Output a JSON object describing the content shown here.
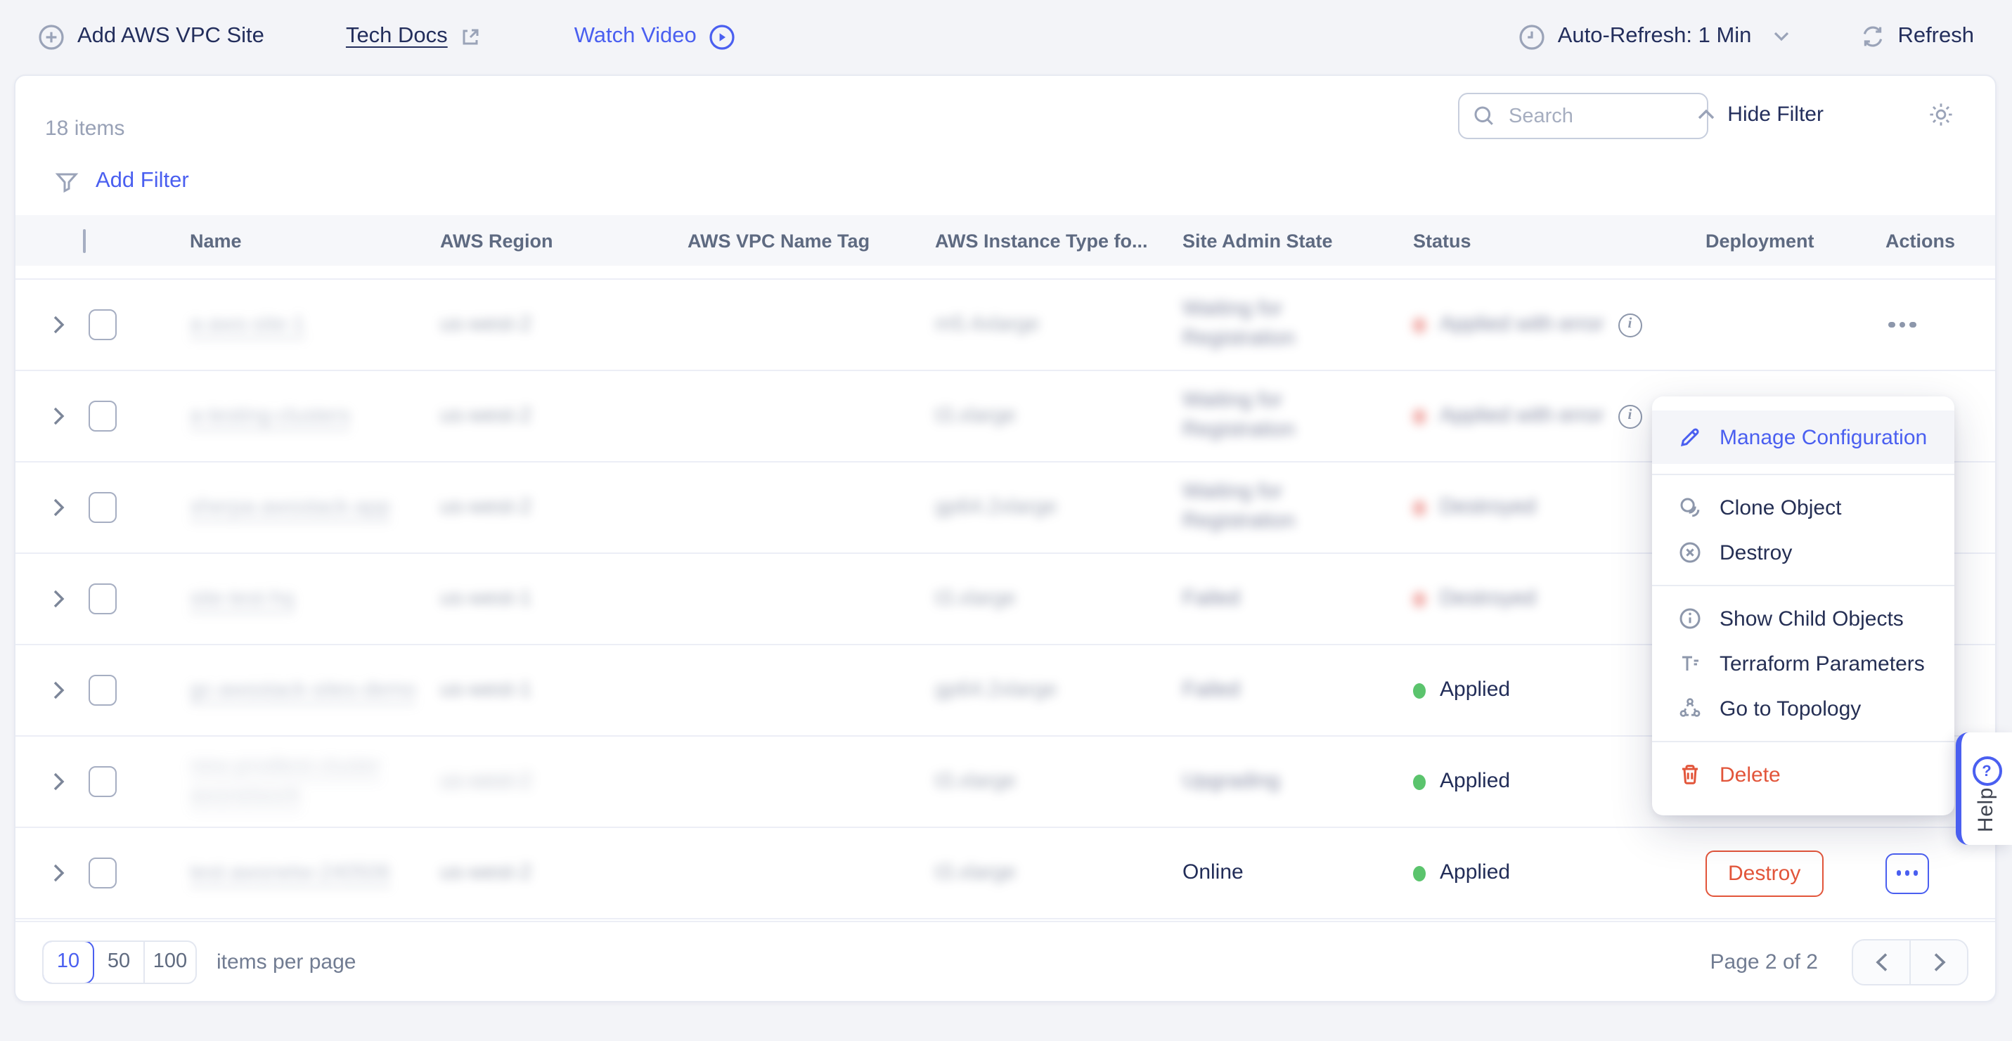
{
  "toolbar": {
    "add_site": "Add AWS VPC Site",
    "tech_docs": "Tech Docs",
    "watch_video": "Watch Video",
    "auto_refresh": "Auto-Refresh: 1 Min",
    "refresh": "Refresh"
  },
  "list_panel": {
    "items_count": "18 items",
    "search_placeholder": "Search",
    "hide_filter": "Hide Filter",
    "add_filter": "Add Filter"
  },
  "table": {
    "columns": [
      "Name",
      "AWS Region",
      "AWS VPC Name Tag",
      "AWS Instance Type fo...",
      "Site Admin State",
      "Status",
      "Deployment",
      "Actions"
    ],
    "rows": [
      {
        "name": {
          "text": "a-aws-site-1",
          "redacted": true
        },
        "region": {
          "text": "us-west-2",
          "redacted": true
        },
        "vpc_tag": "",
        "instance": {
          "text": "m5.4xlarge",
          "redacted": true
        },
        "admin": {
          "text": "Waiting for Registration",
          "redacted": true
        },
        "status": {
          "text": "Applied with error",
          "kind": "error",
          "info": true,
          "redacted": true
        },
        "deployment": null,
        "actions": "dots-plain"
      },
      {
        "name": {
          "text": "a-testing-clusters",
          "redacted": true
        },
        "region": {
          "text": "us-west-2",
          "redacted": true
        },
        "vpc_tag": "",
        "instance": {
          "text": "t3.xlarge",
          "redacted": true
        },
        "admin": {
          "text": "Waiting for Registration",
          "redacted": true
        },
        "status": {
          "text": "Applied with error",
          "kind": "error",
          "info": true,
          "redacted": true
        },
        "deployment": null,
        "actions": null
      },
      {
        "name": {
          "text": "sherpa-awsstack-app",
          "redacted": true
        },
        "region": {
          "text": "us-west-2",
          "redacted": true
        },
        "vpc_tag": "",
        "instance": {
          "text": "gp64.2xlarge",
          "redacted": true
        },
        "admin": {
          "text": "Waiting for Registration",
          "redacted": true
        },
        "status": {
          "text": "Destroyed",
          "kind": "error",
          "info": false,
          "redacted": true
        },
        "deployment": null,
        "actions": null
      },
      {
        "name": {
          "text": "site-test-hq",
          "redacted": true
        },
        "region": {
          "text": "us-west-1",
          "redacted": true
        },
        "vpc_tag": "",
        "instance": {
          "text": "t3.xlarge",
          "redacted": true
        },
        "admin": {
          "text": "Failed",
          "redacted": true
        },
        "status": {
          "text": "Destroyed",
          "kind": "error",
          "info": false,
          "redacted": true
        },
        "deployment": null,
        "actions": null
      },
      {
        "name": {
          "text": "gc-awsstack-sites-demo",
          "redacted": true
        },
        "region": {
          "text": "us-west-1",
          "redacted": true
        },
        "vpc_tag": "",
        "instance": {
          "text": "gp64.2xlarge",
          "redacted": true
        },
        "admin": {
          "text": "Failed",
          "redacted": true
        },
        "status": {
          "text": "Applied",
          "kind": "ok",
          "info": false,
          "redacted": false
        },
        "deployment": null,
        "actions": null
      },
      {
        "name": {
          "text": "new-prodtest-cluster awsnetwork",
          "redacted": true,
          "soft": true
        },
        "region": {
          "text": "us-west-2",
          "redacted": true,
          "soft": true
        },
        "vpc_tag": "",
        "instance": {
          "text": "t3.xlarge",
          "redacted": true
        },
        "admin": {
          "text": "Upgrading",
          "redacted": true
        },
        "status": {
          "text": "Applied",
          "kind": "ok",
          "info": false,
          "redacted": false
        },
        "deployment": null,
        "actions": null
      },
      {
        "name": {
          "text": "test-awsnetw-240506",
          "redacted": true
        },
        "region": {
          "text": "us-west-2",
          "redacted": true
        },
        "vpc_tag": "",
        "instance": {
          "text": "t3.xlarge",
          "redacted": true
        },
        "admin": {
          "text": "Online",
          "redacted": false
        },
        "status": {
          "text": "Applied",
          "kind": "ok",
          "info": false,
          "redacted": false
        },
        "deployment": {
          "button": "Destroy"
        },
        "actions": "dots-active"
      }
    ]
  },
  "context_menu": {
    "items": [
      {
        "label": "Manage Configuration"
      },
      {
        "label": "Clone Object"
      },
      {
        "label": "Destroy"
      },
      {
        "label": "Show Child Objects"
      },
      {
        "label": "Terraform Parameters"
      },
      {
        "label": "Go to Topology"
      },
      {
        "label": "Delete"
      }
    ]
  },
  "pagination": {
    "sizes": [
      "10",
      "50",
      "100"
    ],
    "selected": "10",
    "per_page_label": "items per page",
    "page_info": "Page 2 of 2"
  },
  "help_tab": {
    "label": "Help",
    "icon_glyph": "?"
  }
}
